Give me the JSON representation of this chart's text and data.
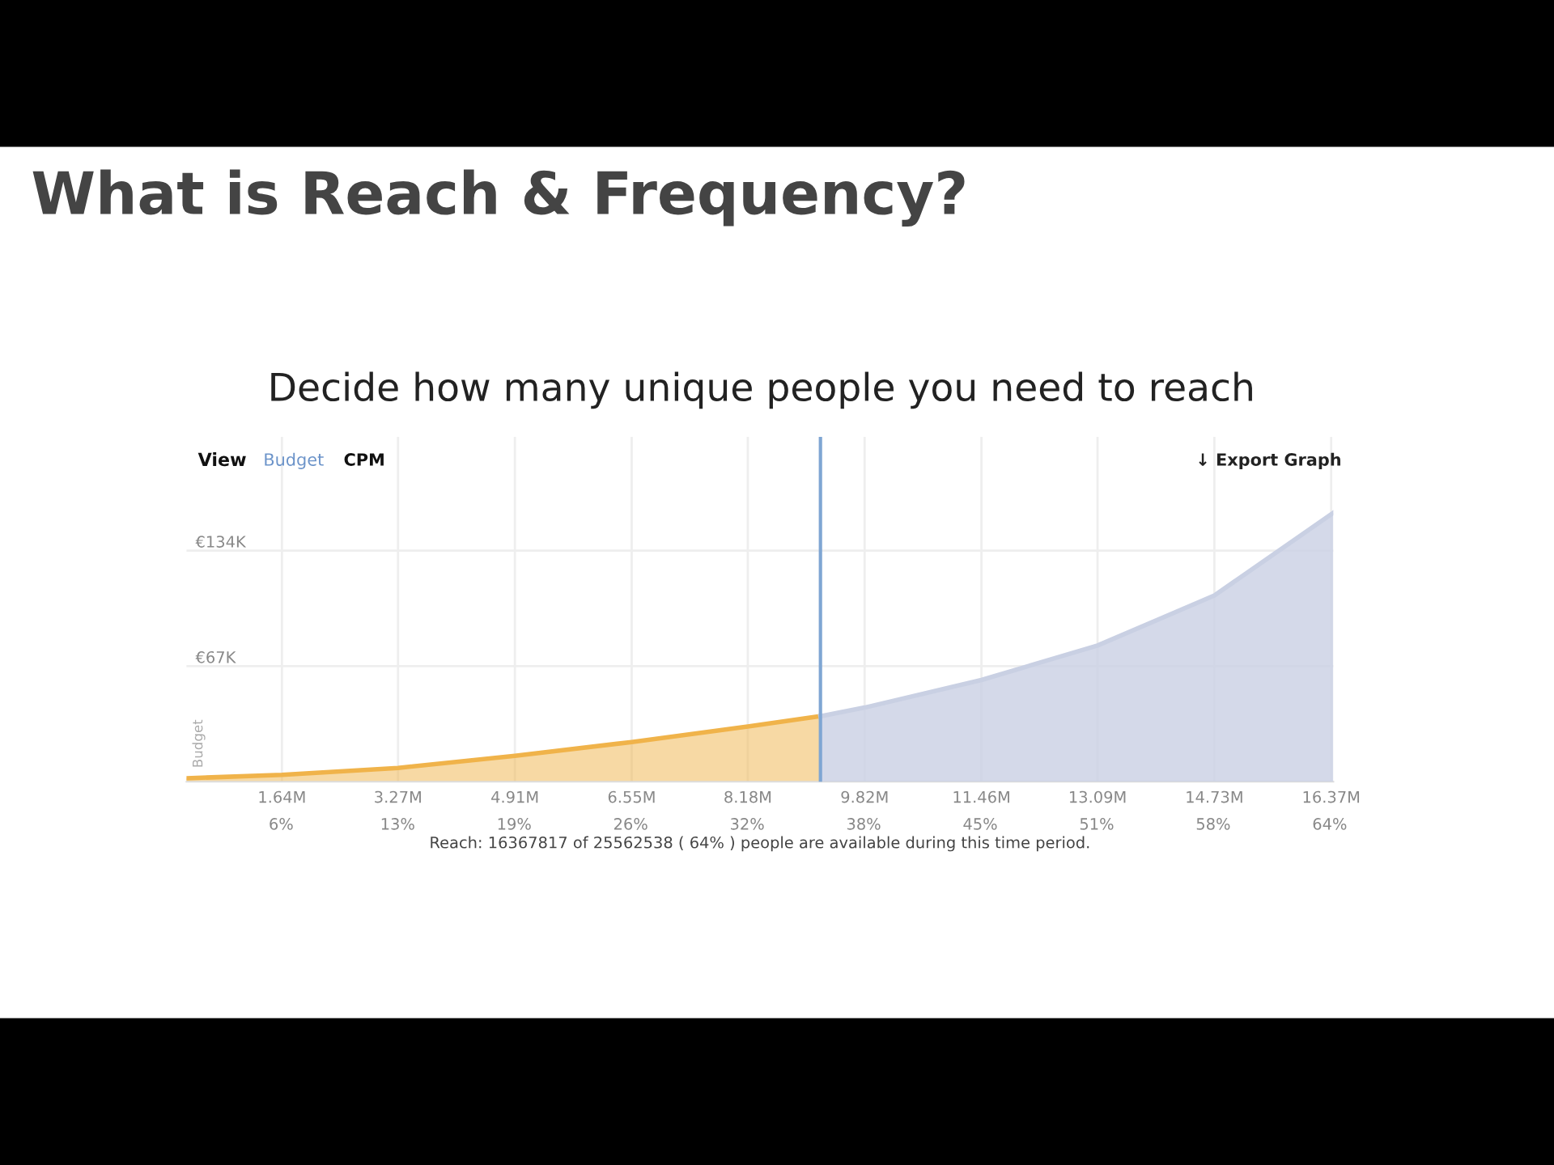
{
  "chart_data": {
    "type": "area",
    "title": "What is Reach & Frequency?",
    "subtitle": "Decide how many unique people you need to reach",
    "ylabel": "Budget",
    "series": [
      {
        "color": "#f0b34a",
        "x": [
          0.3,
          1.64,
          3.27,
          4.91,
          6.55,
          8.18,
          9.2
        ],
        "values": [
          2,
          4,
          8,
          15,
          23,
          32,
          38
        ]
      },
      {
        "color": "#c9d0e3",
        "x": [
          9.2,
          9.82,
          11.46,
          13.09,
          14.73,
          16.4
        ],
        "values": [
          38,
          43,
          59,
          79,
          108,
          156
        ]
      }
    ],
    "xlim": [
      0.3,
      16.4
    ],
    "ylim": [
      0,
      200
    ],
    "xticks": [
      {
        "value": 1.64,
        "label": "1.64M"
      },
      {
        "value": 3.27,
        "label": "3.27M"
      },
      {
        "value": 4.91,
        "label": "4.91M"
      },
      {
        "value": 6.55,
        "label": "6.55M"
      },
      {
        "value": 8.18,
        "label": "8.18M"
      },
      {
        "value": 9.82,
        "label": "9.82M"
      },
      {
        "value": 11.46,
        "label": "11.46M"
      },
      {
        "value": 13.09,
        "label": "13.09M"
      },
      {
        "value": 14.73,
        "label": "14.73M"
      },
      {
        "value": 16.37,
        "label": "16.37M"
      }
    ],
    "x2lim": [
      1.2,
      64.2
    ],
    "x2ticks": [
      {
        "value": 6.4,
        "label": "6%"
      },
      {
        "value": 12.8,
        "label": "13%"
      },
      {
        "value": 19.2,
        "label": "19%"
      },
      {
        "value": 25.6,
        "label": "26%"
      },
      {
        "value": 32.0,
        "label": "32%"
      },
      {
        "value": 38.4,
        "label": "38%"
      },
      {
        "value": 44.8,
        "label": "45%"
      },
      {
        "value": 51.2,
        "label": "51%"
      },
      {
        "value": 57.6,
        "label": "58%"
      },
      {
        "value": 64.0,
        "label": "64%"
      }
    ],
    "yticks": [
      {
        "value": 67,
        "label": "€67K"
      },
      {
        "value": 134,
        "label": "€134K"
      }
    ],
    "ref_lines": [
      {
        "axis": "x",
        "value": 9.2,
        "label": null,
        "color": "#7fa6d3"
      }
    ],
    "grid": true,
    "annotations": [
      "View",
      "Budget",
      "CPM",
      "↓ Export Graph",
      "Reach: 16367817 of 25562538 ( 64% ) people are available during this time period."
    ]
  }
}
